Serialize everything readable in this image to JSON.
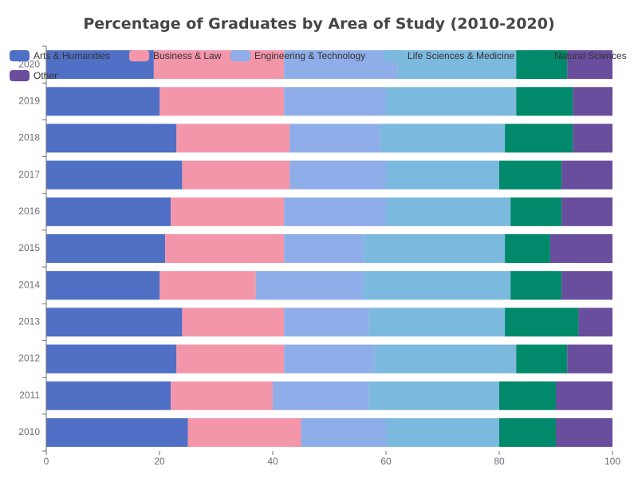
{
  "chart_data": {
    "type": "bar",
    "orientation": "horizontal",
    "stacked": true,
    "title": "Percentage of Graduates by Area of Study (2010-2020)",
    "xlabel": "",
    "ylabel": "",
    "xlim": [
      0,
      100
    ],
    "x_ticks": [
      "0",
      "20",
      "40",
      "60",
      "80",
      "100"
    ],
    "grid": false,
    "legend_position": "top-left",
    "categories": [
      "2010",
      "2011",
      "2012",
      "2013",
      "2014",
      "2015",
      "2016",
      "2017",
      "2018",
      "2019",
      "2020"
    ],
    "series": [
      {
        "name": "Arts & Humanities",
        "color": "#5070c6",
        "values": [
          25,
          22,
          23,
          24,
          20,
          21,
          22,
          24,
          23,
          20,
          19
        ]
      },
      {
        "name": "Business & Law",
        "color": "#f496aa",
        "values": [
          20,
          18,
          19,
          18,
          17,
          21,
          20,
          19,
          20,
          22,
          23
        ]
      },
      {
        "name": "Engineering & Technology",
        "color": "#8fade8",
        "values": [
          15,
          17,
          16,
          15,
          19,
          14,
          18,
          17,
          16,
          18,
          20
        ]
      },
      {
        "name": "Life Sciences & Medicine",
        "color": "#7cb9de",
        "values": [
          20,
          23,
          25,
          24,
          26,
          25,
          22,
          20,
          22,
          23,
          21
        ]
      },
      {
        "name": "Natural Sciences",
        "color": "#00896a",
        "values": [
          10,
          10,
          9,
          13,
          9,
          8,
          9,
          11,
          12,
          10,
          9
        ]
      },
      {
        "name": "Other",
        "color": "#6a4e9e",
        "values": [
          10,
          10,
          8,
          6,
          9,
          11,
          9,
          9,
          7,
          7,
          8
        ]
      }
    ]
  }
}
